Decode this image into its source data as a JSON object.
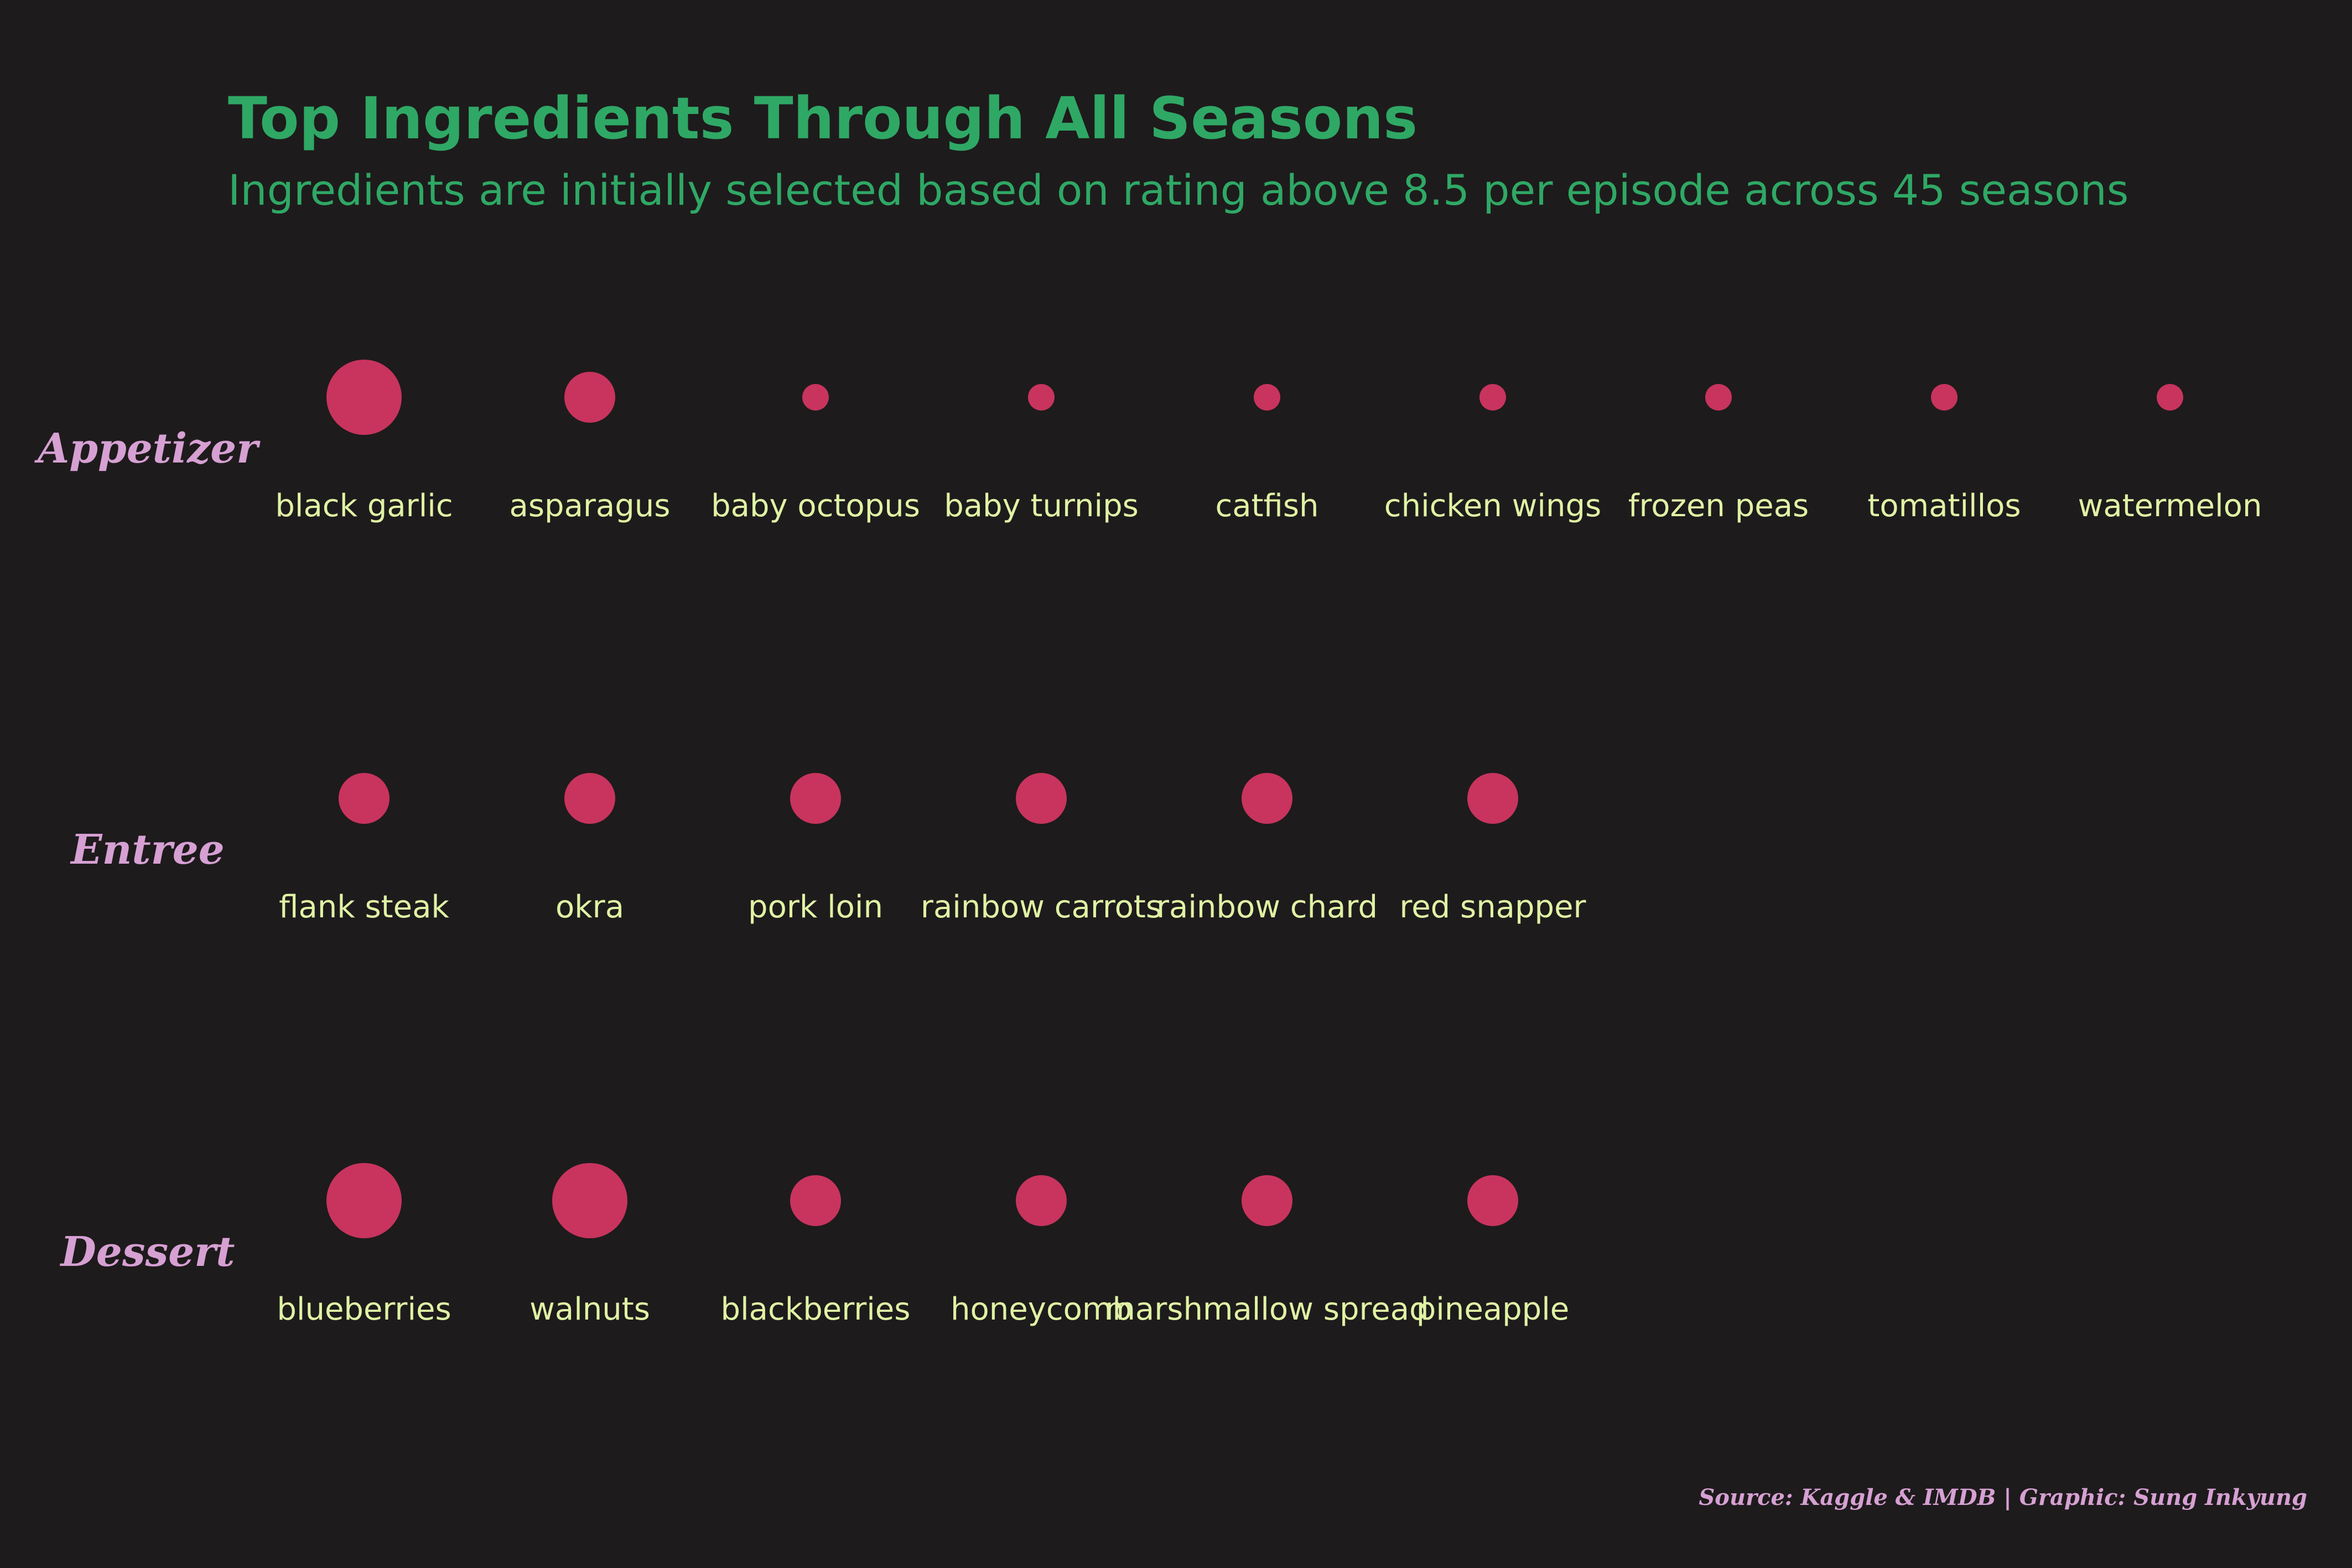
{
  "colors": {
    "background": "#1e1b1c",
    "title": "#2fa865",
    "row_label": "#d6a0d3",
    "item_label": "#dff2a4",
    "bubble": "#c8345e",
    "caption": "#d6a0d3"
  },
  "chart_data": {
    "type": "scatter",
    "title": "Top Ingredients Through All Seasons",
    "subtitle": "Ingredients are initially selected based on rating above 8.5 per episode across 45 seasons",
    "caption": "Source: Kaggle & IMDB | Graphic: Sung Inkyung",
    "size_encoding": "count",
    "rows": [
      {
        "name": "Appetizer",
        "items": [
          {
            "label": "black garlic",
            "value": 3
          },
          {
            "label": "asparagus",
            "value": 2
          },
          {
            "label": "baby octopus",
            "value": 1
          },
          {
            "label": "baby turnips",
            "value": 1
          },
          {
            "label": "catfish",
            "value": 1
          },
          {
            "label": "chicken wings",
            "value": 1
          },
          {
            "label": "frozen peas",
            "value": 1
          },
          {
            "label": "tomatillos",
            "value": 1
          },
          {
            "label": "watermelon",
            "value": 1
          }
        ]
      },
      {
        "name": "Entree",
        "items": [
          {
            "label": "flank steak",
            "value": 2
          },
          {
            "label": "okra",
            "value": 2
          },
          {
            "label": "pork loin",
            "value": 2
          },
          {
            "label": "rainbow carrots",
            "value": 2
          },
          {
            "label": "rainbow chard",
            "value": 2
          },
          {
            "label": "red snapper",
            "value": 2
          }
        ]
      },
      {
        "name": "Dessert",
        "items": [
          {
            "label": "blueberries",
            "value": 3
          },
          {
            "label": "walnuts",
            "value": 3
          },
          {
            "label": "blackberries",
            "value": 2
          },
          {
            "label": "honeycomb",
            "value": 2
          },
          {
            "label": "marshmallow spread",
            "value": 2
          },
          {
            "label": "pineapple",
            "value": 2
          }
        ]
      }
    ]
  }
}
